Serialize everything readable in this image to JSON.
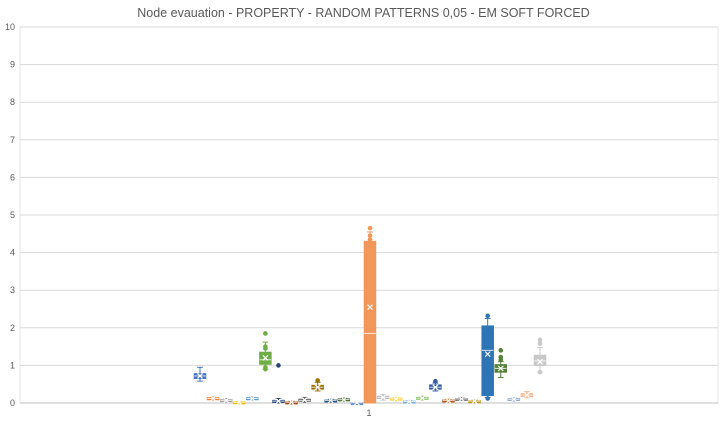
{
  "chart_data": {
    "type": "box",
    "title": "Node evauation - PROPERTY - RANDOM PATTERNS 0,05 - EM SOFT FORCED",
    "xlabel": "",
    "ylabel": "",
    "categories": [
      "1"
    ],
    "ylim": [
      0,
      10
    ],
    "yticks": [
      0,
      1,
      2,
      3,
      4,
      5,
      6,
      7,
      8,
      9,
      10
    ],
    "grid": true,
    "legend": "none",
    "series": [
      {
        "color": "#4472C4",
        "min": 0.58,
        "q1": 0.65,
        "median": 0.72,
        "q3": 0.78,
        "max": 0.95,
        "mean": 0.72,
        "outliers": []
      },
      {
        "color": "#ED7D31",
        "min": 0.08,
        "q1": 0.1,
        "median": 0.12,
        "q3": 0.14,
        "max": 0.16,
        "mean": 0.12,
        "outliers": []
      },
      {
        "color": "#A5A5A5",
        "min": 0.03,
        "q1": 0.05,
        "median": 0.07,
        "q3": 0.09,
        "max": 0.12,
        "mean": 0.07,
        "outliers": []
      },
      {
        "color": "#FFC000",
        "min": 0.0,
        "q1": 0.01,
        "median": 0.02,
        "q3": 0.03,
        "max": 0.04,
        "mean": 0.02,
        "outliers": []
      },
      {
        "color": "#5B9BD5",
        "min": 0.08,
        "q1": 0.1,
        "median": 0.12,
        "q3": 0.14,
        "max": 0.16,
        "mean": 0.12,
        "outliers": []
      },
      {
        "color": "#70AD47",
        "min": 0.9,
        "q1": 1.03,
        "median": 1.15,
        "q3": 1.35,
        "max": 1.62,
        "mean": 1.2,
        "outliers": [
          1.85,
          1.5,
          1.45,
          0.95,
          0.9
        ]
      },
      {
        "color": "#264478",
        "min": 0.0,
        "q1": 0.02,
        "median": 0.05,
        "q3": 0.07,
        "max": 0.12,
        "mean": 0.05,
        "outliers": [
          1.0
        ]
      },
      {
        "color": "#9E480E",
        "min": 0.0,
        "q1": 0.01,
        "median": 0.02,
        "q3": 0.03,
        "max": 0.05,
        "mean": 0.02,
        "outliers": []
      },
      {
        "color": "#636363",
        "min": 0.02,
        "q1": 0.05,
        "median": 0.07,
        "q3": 0.1,
        "max": 0.15,
        "mean": 0.08,
        "outliers": []
      },
      {
        "color": "#997300",
        "min": 0.32,
        "q1": 0.37,
        "median": 0.42,
        "q3": 0.47,
        "max": 0.55,
        "mean": 0.42,
        "outliers": [
          0.6
        ]
      },
      {
        "color": "#255E91",
        "min": 0.04,
        "q1": 0.06,
        "median": 0.07,
        "q3": 0.08,
        "max": 0.1,
        "mean": 0.07,
        "outliers": []
      },
      {
        "color": "#43682B",
        "min": 0.05,
        "q1": 0.07,
        "median": 0.09,
        "q3": 0.11,
        "max": 0.13,
        "mean": 0.09,
        "outliers": []
      },
      {
        "color": "#698ED0",
        "min": 0.0,
        "q1": 0.0,
        "median": 0.01,
        "q3": 0.01,
        "max": 0.02,
        "mean": 0.01,
        "outliers": []
      },
      {
        "color": "#F1975A",
        "min": 0.0,
        "q1": 0.0,
        "median": 1.85,
        "q3": 4.3,
        "max": 4.55,
        "mean": 2.55,
        "outliers": [
          4.65,
          4.45,
          4.35
        ]
      },
      {
        "color": "#B7B7B7",
        "min": 0.08,
        "q1": 0.12,
        "median": 0.15,
        "q3": 0.18,
        "max": 0.22,
        "mean": 0.15,
        "outliers": []
      },
      {
        "color": "#FFCD33",
        "min": 0.06,
        "q1": 0.09,
        "median": 0.11,
        "q3": 0.13,
        "max": 0.15,
        "mean": 0.11,
        "outliers": []
      },
      {
        "color": "#7CAFDD",
        "min": 0.01,
        "q1": 0.02,
        "median": 0.04,
        "q3": 0.05,
        "max": 0.07,
        "mean": 0.04,
        "outliers": []
      },
      {
        "color": "#8CC168",
        "min": 0.08,
        "q1": 0.11,
        "median": 0.13,
        "q3": 0.15,
        "max": 0.18,
        "mean": 0.13,
        "outliers": []
      },
      {
        "color": "#335AA1",
        "min": 0.32,
        "q1": 0.37,
        "median": 0.42,
        "q3": 0.48,
        "max": 0.53,
        "mean": 0.42,
        "outliers": [
          0.58
        ]
      },
      {
        "color": "#C55A11",
        "min": 0.03,
        "q1": 0.05,
        "median": 0.07,
        "q3": 0.08,
        "max": 0.1,
        "mean": 0.06,
        "outliers": []
      },
      {
        "color": "#7B7B7B",
        "min": 0.07,
        "q1": 0.09,
        "median": 0.11,
        "q3": 0.12,
        "max": 0.15,
        "mean": 0.11,
        "outliers": []
      },
      {
        "color": "#BF9000",
        "min": 0.02,
        "q1": 0.04,
        "median": 0.05,
        "q3": 0.06,
        "max": 0.08,
        "mean": 0.05,
        "outliers": []
      },
      {
        "color": "#2E75B6",
        "min": 0.15,
        "q1": 0.2,
        "median": 1.4,
        "q3": 2.05,
        "max": 2.25,
        "mean": 1.3,
        "outliers": [
          2.32,
          0.12
        ]
      },
      {
        "color": "#548235",
        "min": 0.68,
        "q1": 0.82,
        "median": 0.92,
        "q3": 1.02,
        "max": 1.1,
        "mean": 0.92,
        "outliers": [
          1.4,
          1.22,
          1.15
        ]
      },
      {
        "color": "#8FAADC",
        "min": 0.05,
        "q1": 0.08,
        "median": 0.1,
        "q3": 0.12,
        "max": 0.14,
        "mean": 0.1,
        "outliers": []
      },
      {
        "color": "#F4B183",
        "min": 0.14,
        "q1": 0.17,
        "median": 0.21,
        "q3": 0.25,
        "max": 0.3,
        "mean": 0.21,
        "outliers": []
      },
      {
        "color": "#C9C9C9",
        "min": 0.82,
        "q1": 1.0,
        "median": 1.12,
        "q3": 1.27,
        "max": 1.48,
        "mean": 1.1,
        "outliers": [
          1.68,
          1.58,
          0.82
        ]
      }
    ]
  }
}
